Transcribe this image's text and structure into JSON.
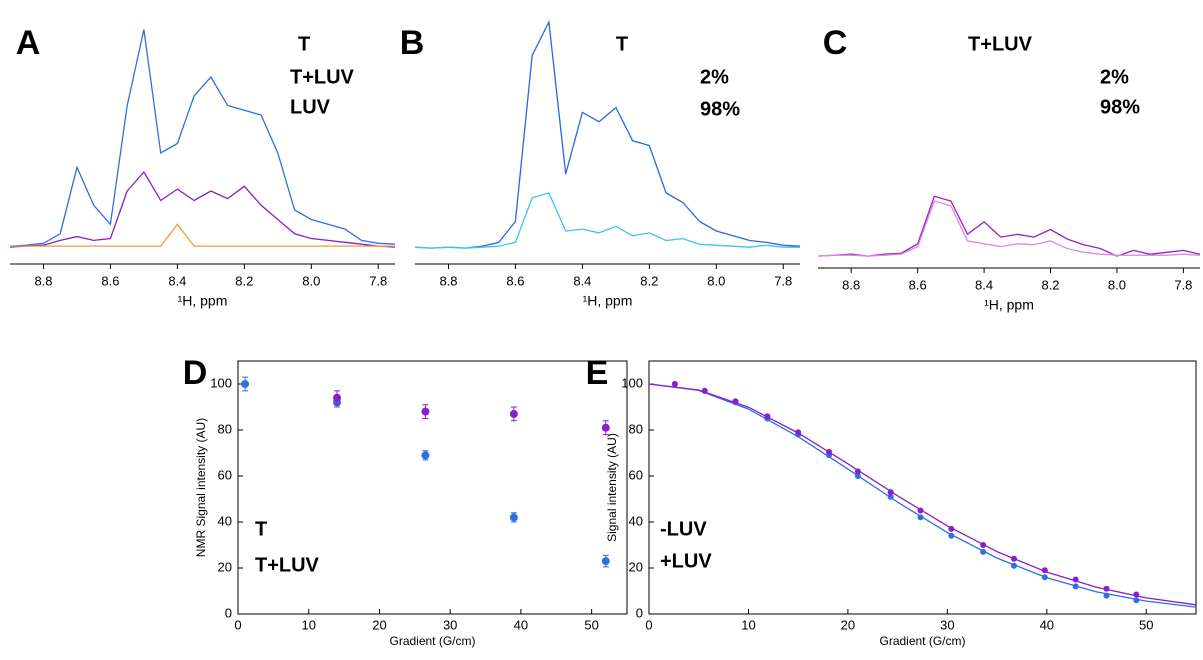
{
  "chart_data": [
    {
      "type": "line",
      "panel": "A",
      "xlabel": "¹H, ppm",
      "xlim": [
        8.9,
        7.75
      ],
      "xticks": [
        8.8,
        8.6,
        8.4,
        8.2,
        {
          "value": 8,
          "label": "8.0"
        },
        7.8
      ],
      "x": [
        8.9,
        8.85,
        8.8,
        8.75,
        8.7,
        8.65,
        8.6,
        8.55,
        8.5,
        8.45,
        8.4,
        8.35,
        8.3,
        8.25,
        8.2,
        8.15,
        8.1,
        8.05,
        8.0,
        7.95,
        7.9,
        7.85,
        7.8,
        7.75
      ],
      "series": [
        {
          "name": "T",
          "color": "#2f6fe0",
          "values": [
            2,
            3,
            5,
            15,
            85,
            45,
            25,
            150,
            230,
            100,
            110,
            160,
            180,
            150,
            145,
            140,
            100,
            40,
            30,
            25,
            20,
            8,
            5,
            4
          ]
        },
        {
          "name": "T+LUV",
          "color": "#8b1fc7",
          "values": [
            1,
            2,
            3,
            8,
            12,
            8,
            10,
            60,
            80,
            50,
            62,
            50,
            60,
            52,
            65,
            45,
            30,
            15,
            10,
            8,
            6,
            4,
            2,
            1
          ]
        },
        {
          "name": "LUV",
          "color": "#f39a3c",
          "values": [
            2,
            2,
            2,
            2,
            2,
            2,
            2,
            2,
            2,
            2,
            25,
            2,
            2,
            2,
            2,
            2,
            2,
            2,
            2,
            2,
            2,
            2,
            2,
            2
          ]
        }
      ]
    },
    {
      "type": "line",
      "panel": "B",
      "title": "T",
      "title_color": "#2e7bea",
      "xlabel": "¹H, ppm",
      "xlim": [
        8.9,
        7.75
      ],
      "xticks": [
        8.8,
        8.6,
        8.4,
        8.2,
        {
          "value": 8,
          "label": "8.0"
        },
        7.8
      ],
      "x": [
        8.9,
        8.85,
        8.8,
        8.75,
        8.7,
        8.65,
        8.6,
        8.55,
        8.5,
        8.45,
        8.4,
        8.35,
        8.3,
        8.25,
        8.2,
        8.15,
        8.1,
        8.05,
        8.0,
        7.95,
        7.9,
        7.85,
        7.8,
        7.75
      ],
      "series": [
        {
          "name": "2%",
          "color": "#2868e0",
          "values": [
            3,
            2,
            3,
            2,
            4,
            8,
            30,
            205,
            240,
            80,
            145,
            135,
            150,
            115,
            110,
            60,
            50,
            30,
            20,
            15,
            10,
            8,
            5,
            4
          ]
        },
        {
          "name": "98%",
          "color": "#3fc3f0",
          "values": [
            3,
            2,
            3,
            2,
            3,
            4,
            8,
            55,
            60,
            20,
            22,
            18,
            25,
            15,
            18,
            10,
            12,
            6,
            5,
            4,
            3,
            5,
            3,
            3
          ]
        }
      ]
    },
    {
      "type": "line",
      "panel": "C",
      "title": "T+LUV",
      "title_color": "#8b1fc7",
      "xlabel": "¹H, ppm",
      "xlim": [
        8.9,
        7.75
      ],
      "xticks": [
        8.8,
        8.6,
        8.4,
        8.2,
        {
          "value": 8,
          "label": "8.0"
        },
        7.8
      ],
      "x": [
        8.9,
        8.85,
        8.8,
        8.75,
        8.7,
        8.65,
        8.6,
        8.55,
        8.5,
        8.45,
        8.4,
        8.35,
        8.3,
        8.25,
        8.2,
        8.15,
        8.1,
        8.05,
        8.0,
        7.95,
        7.9,
        7.85,
        7.8,
        7.75
      ],
      "series": [
        {
          "name": "2%",
          "color": "#9a1fc2",
          "values": [
            2,
            3,
            4,
            2,
            4,
            5,
            15,
            65,
            60,
            25,
            38,
            22,
            25,
            22,
            30,
            20,
            14,
            10,
            2,
            8,
            4,
            6,
            8,
            4
          ]
        },
        {
          "name": "98%",
          "color": "#d98be0",
          "values": [
            2,
            3,
            3,
            2,
            3,
            4,
            12,
            60,
            55,
            18,
            15,
            12,
            15,
            14,
            18,
            10,
            6,
            4,
            3,
            3,
            3,
            3,
            4,
            3
          ]
        }
      ]
    },
    {
      "type": "scatter",
      "panel": "D",
      "xlabel": "Gradient (G/cm)",
      "ylabel": "NMR Signal intensity (AU)",
      "xlim": [
        0,
        55
      ],
      "ylim": [
        0,
        110
      ],
      "xticks": [
        0,
        10,
        20,
        30,
        40,
        50
      ],
      "yticks": [
        0,
        20,
        40,
        60,
        80,
        100
      ],
      "series": [
        {
          "name": "T",
          "color": "#2f6fe0",
          "x": [
            1,
            14,
            26.5,
            39,
            52
          ],
          "values": [
            100,
            92,
            69,
            42,
            23
          ],
          "errors": [
            3,
            2,
            2,
            2,
            2.5
          ]
        },
        {
          "name": "T+LUV",
          "color": "#8b1fc7",
          "x": [
            14,
            26.5,
            39,
            52
          ],
          "values": [
            94,
            88,
            87,
            81
          ],
          "errors": [
            3,
            3,
            3,
            3
          ]
        }
      ]
    },
    {
      "type": "scatter",
      "panel": "E",
      "xlabel": "Gradient (G/cm)",
      "ylabel": "Signal intensity (AU)",
      "xlim": [
        0,
        55
      ],
      "ylim": [
        0,
        110
      ],
      "xticks": [
        0,
        10,
        20,
        30,
        40,
        50
      ],
      "yticks": [
        0,
        20,
        40,
        60,
        80,
        100
      ],
      "series": [
        {
          "name": "-LUV",
          "color": "#2f6fe0",
          "x": [
            2.6,
            5.6,
            8.7,
            11.9,
            15,
            18.1,
            21,
            24.3,
            27.3,
            30.4,
            33.6,
            36.7,
            39.8,
            42.9,
            46,
            49
          ],
          "values": [
            100,
            97,
            92,
            85,
            78,
            69,
            60,
            51,
            42,
            34,
            27,
            21,
            16,
            12,
            8,
            6
          ],
          "fit": {
            "x": [
              0,
              5,
              10,
              15,
              20,
              25,
              30,
              35,
              40,
              45,
              50,
              55
            ],
            "values": [
              100,
              97.2,
              89.1,
              77.1,
              63.0,
              48.6,
              35.4,
              24.3,
              15.8,
              9.6,
              5.6,
              3.0
            ]
          }
        },
        {
          "name": "+LUV",
          "color": "#8b1fc7",
          "x": [
            2.6,
            5.6,
            8.7,
            11.9,
            15,
            18.1,
            21,
            24.3,
            27.3,
            30.4,
            33.6,
            36.7,
            39.8,
            42.9,
            46,
            49
          ],
          "values": [
            100,
            97,
            92.5,
            86,
            79,
            70.5,
            62,
            53,
            45,
            37,
            30,
            24,
            19,
            15,
            11,
            8.5
          ],
          "fit": {
            "x": [
              0,
              5,
              10,
              15,
              20,
              25,
              30,
              35,
              40,
              45,
              50,
              55
            ],
            "values": [
              100,
              97.4,
              89.9,
              78.7,
              65.3,
              51.4,
              38.3,
              27.1,
              18.2,
              11.6,
              7.0,
              4.0
            ]
          }
        }
      ]
    }
  ]
}
